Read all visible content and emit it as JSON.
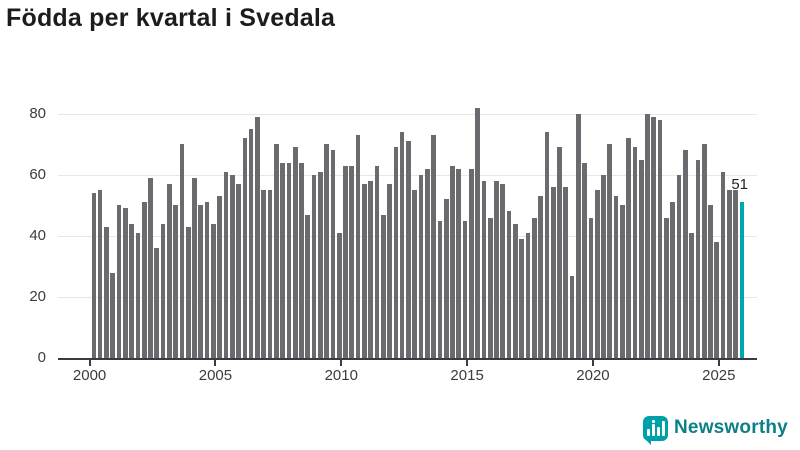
{
  "title": "Födda per kvartal i Svedala",
  "chart_data": {
    "type": "bar",
    "title": "Födda per kvartal i Svedala",
    "xlabel": "",
    "ylabel": "",
    "ylim": [
      0,
      85
    ],
    "grid": "horizontal",
    "y_tick_labels": [
      "0",
      "20",
      "40",
      "60",
      "80"
    ],
    "y_tick_values": [
      0,
      20,
      40,
      60,
      80
    ],
    "x_tick_labels": [
      "2000",
      "2005",
      "2010",
      "2015",
      "2020",
      "2025"
    ],
    "start_quarter": "2000-Q1",
    "end_quarter": "2025-Q4",
    "series_name": "Födda per kvartal",
    "years": [
      {
        "year": 2000,
        "q": [
          54,
          55,
          43,
          28
        ]
      },
      {
        "year": 2001,
        "q": [
          50,
          49,
          44,
          41
        ]
      },
      {
        "year": 2002,
        "q": [
          51,
          59,
          36,
          44
        ]
      },
      {
        "year": 2003,
        "q": [
          57,
          50,
          70,
          43
        ]
      },
      {
        "year": 2004,
        "q": [
          59,
          50,
          51,
          44
        ]
      },
      {
        "year": 2005,
        "q": [
          53,
          61,
          60,
          57
        ]
      },
      {
        "year": 2006,
        "q": [
          72,
          75,
          79,
          55
        ]
      },
      {
        "year": 2007,
        "q": [
          55,
          70,
          64,
          64
        ]
      },
      {
        "year": 2008,
        "q": [
          69,
          64,
          47,
          60
        ]
      },
      {
        "year": 2009,
        "q": [
          61,
          70,
          68,
          41
        ]
      },
      {
        "year": 2010,
        "q": [
          63,
          63,
          73,
          57
        ]
      },
      {
        "year": 2011,
        "q": [
          58,
          63,
          47,
          57
        ]
      },
      {
        "year": 2012,
        "q": [
          69,
          74,
          71,
          55
        ]
      },
      {
        "year": 2013,
        "q": [
          60,
          62,
          73,
          45
        ]
      },
      {
        "year": 2014,
        "q": [
          52,
          63,
          62,
          45
        ]
      },
      {
        "year": 2015,
        "q": [
          62,
          82,
          58,
          46
        ]
      },
      {
        "year": 2016,
        "q": [
          58,
          57,
          48,
          44
        ]
      },
      {
        "year": 2017,
        "q": [
          39,
          41,
          46,
          53
        ]
      },
      {
        "year": 2018,
        "q": [
          74,
          56,
          69,
          56
        ]
      },
      {
        "year": 2019,
        "q": [
          27,
          80,
          64,
          46
        ]
      },
      {
        "year": 2020,
        "q": [
          55,
          60,
          70,
          53
        ]
      },
      {
        "year": 2021,
        "q": [
          50,
          72,
          69,
          65
        ]
      },
      {
        "year": 2022,
        "q": [
          80,
          79,
          78,
          46
        ]
      },
      {
        "year": 2023,
        "q": [
          51,
          60,
          68,
          41
        ]
      },
      {
        "year": 2024,
        "q": [
          65,
          70,
          50,
          38
        ]
      },
      {
        "year": 2025,
        "q": [
          61,
          55,
          55,
          51
        ]
      }
    ],
    "highlight": {
      "position": "last",
      "value": 51,
      "label": "51"
    },
    "legend": "none"
  },
  "annotation_label": "51",
  "logo": {
    "text": "Newsworthy",
    "icon": "bar-chart-logo-icon"
  },
  "colors": {
    "background": "#ffffff",
    "bar": "#6a6a6f",
    "accent": "#00a5ad",
    "title": "#1c1c1c",
    "axis": "#3a3a40",
    "grid": "#e7e7e7",
    "tick_label": "#3c3c3c",
    "annotation": "#222222",
    "logo_icon": "#00a0ab",
    "logo_text": "#0d7f89"
  }
}
